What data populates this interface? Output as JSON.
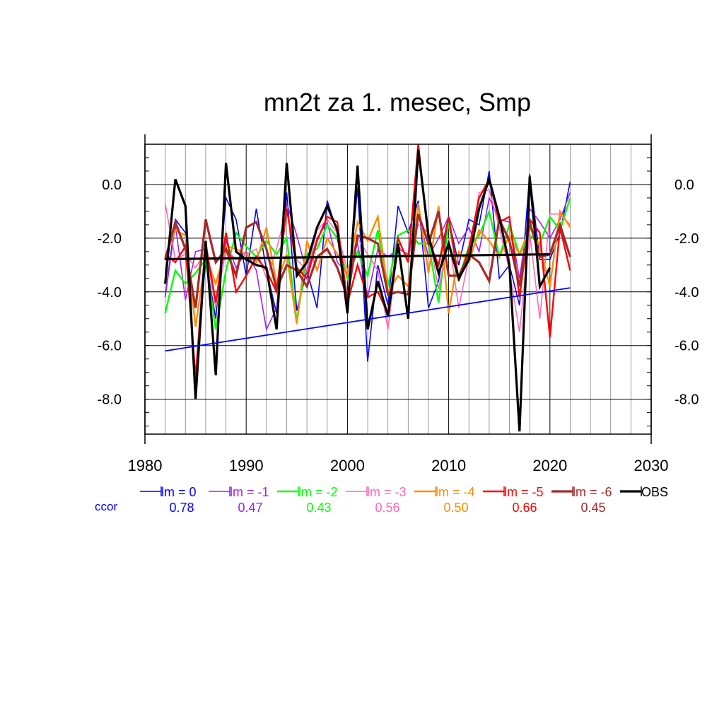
{
  "chart_data": {
    "type": "line",
    "title": "mn2t za 1. mesec, Smp",
    "xlabel": "",
    "ylabel": "",
    "xlim": [
      1980,
      2030
    ],
    "ylim": [
      -9.3,
      1.5
    ],
    "x_ticks": [
      1980,
      1990,
      2000,
      2010,
      2020,
      2030
    ],
    "x_tick_labels": [
      "1980",
      "1990",
      "2000",
      "2010",
      "2020",
      "2030"
    ],
    "y_ticks": [
      0,
      -2,
      -4,
      -6,
      -8
    ],
    "y_tick_labels": [
      "0.0",
      "-2.0",
      "-4.0",
      "-6.0",
      "-8.0"
    ],
    "grid": true,
    "legend_position": "bottom",
    "ccor_label": "ccor",
    "ccor_color": "#0000ff",
    "series": [
      {
        "name": "lm = 0",
        "color": "#0000ff",
        "stroke": "thin",
        "ccor": "0.78",
        "x": [
          1982,
          1983,
          1984,
          1985,
          1986,
          1987,
          1988,
          1989,
          1990,
          1991,
          1992,
          1993,
          1994,
          1995,
          1996,
          1997,
          1998,
          1999,
          2000,
          2001,
          2002,
          2003,
          2004,
          2005,
          2006,
          2007,
          2008,
          2009,
          2010,
          2011,
          2012,
          2013,
          2014,
          2015,
          2016,
          2017,
          2018,
          2019,
          2020,
          2021,
          2022
        ],
        "values": [
          -4.2,
          -1.3,
          -1.8,
          -7.4,
          -2.8,
          -5.0,
          -0.5,
          -1.3,
          -3.4,
          -0.9,
          -3.2,
          -4.8,
          -0.3,
          -4.7,
          -3.2,
          -4.6,
          -0.6,
          -1.8,
          -4.4,
          -0.1,
          -6.6,
          -3.0,
          -4.5,
          -0.8,
          -1.8,
          -0.6,
          -4.6,
          -3.6,
          -1.3,
          -3.0,
          -1.3,
          -1.5,
          0.5,
          -3.5,
          -3.0,
          -4.5,
          0.4,
          -2.8,
          -2.8,
          -1.8,
          0.1
        ]
      },
      {
        "name": "lm = -1",
        "color": "#a020f0",
        "stroke": "thin",
        "ccor": "0.47",
        "x": [
          1982,
          1983,
          1984,
          1985,
          1986,
          1987,
          1988,
          1989,
          1990,
          1991,
          1992,
          1993,
          1994,
          1995,
          1996,
          1997,
          1998,
          1999,
          2000,
          2001,
          2002,
          2003,
          2004,
          2005,
          2006,
          2007,
          2008,
          2009,
          2010,
          2011,
          2012,
          2013,
          2014,
          2015,
          2016,
          2017,
          2018,
          2019,
          2020,
          2021,
          2022
        ],
        "values": [
          -4.2,
          -1.5,
          -4.3,
          -2.5,
          -2.4,
          -4.4,
          -2.1,
          -3.1,
          -2.5,
          -3.2,
          -5.4,
          -4.6,
          -0.7,
          -1.9,
          -3.3,
          -2.0,
          -1.4,
          -2.9,
          -3.3,
          -2.2,
          -4.2,
          -2.4,
          -2.7,
          -2.4,
          -2.6,
          -1.1,
          -2.7,
          -2.0,
          -1.2,
          -2.2,
          -1.6,
          -2.5,
          -0.5,
          -1.3,
          -1.4,
          -3.5,
          -0.9,
          -1.4,
          -2.0,
          -1.3,
          -0.3
        ]
      },
      {
        "name": "lm = -2",
        "color": "#00ff00",
        "stroke": "medium",
        "ccor": "0.43",
        "x": [
          1982,
          1983,
          1984,
          1985,
          1986,
          1987,
          1988,
          1989,
          1990,
          1991,
          1992,
          1993,
          1994,
          1995,
          1996,
          1997,
          1998,
          1999,
          2000,
          2001,
          2002,
          2003,
          2004,
          2005,
          2006,
          2007,
          2008,
          2009,
          2010,
          2011,
          2012,
          2013,
          2014,
          2015,
          2016,
          2017,
          2018,
          2019,
          2020,
          2021,
          2022
        ],
        "values": [
          -4.8,
          -3.2,
          -3.7,
          -3.3,
          -2.8,
          -5.4,
          -3.2,
          -1.8,
          -2.3,
          -2.7,
          -2.1,
          -2.6,
          -2.0,
          -5.1,
          -2.6,
          -2.4,
          -1.5,
          -2.0,
          -3.5,
          -2.5,
          -3.4,
          -1.7,
          -3.8,
          -1.9,
          -1.7,
          -2.2,
          -2.2,
          -4.4,
          -1.4,
          -3.5,
          -2.3,
          -1.9,
          -1.0,
          -2.7,
          -1.5,
          -2.6,
          -1.9,
          -2.2,
          -1.2,
          -1.7,
          -0.5
        ]
      },
      {
        "name": "lm = -3",
        "color": "#ff69b4",
        "stroke": "thin",
        "ccor": "0.56",
        "x": [
          1982,
          1983,
          1984,
          1985,
          1986,
          1987,
          1988,
          1989,
          1990,
          1991,
          1992,
          1993,
          1994,
          1995,
          1996,
          1997,
          1998,
          1999,
          2000,
          2001,
          2002,
          2003,
          2004,
          2005,
          2006,
          2007,
          2008,
          2009,
          2010,
          2011,
          2012,
          2013,
          2014,
          2015,
          2016,
          2017,
          2018,
          2019,
          2020,
          2021,
          2022
        ],
        "values": [
          -0.7,
          -2.8,
          -2.6,
          -3.1,
          -2.5,
          -4.6,
          -2.4,
          -2.8,
          -2.6,
          -2.4,
          -3.5,
          -2.4,
          -0.9,
          -2.8,
          -3.2,
          -1.7,
          -1.3,
          -1.8,
          -3.2,
          -2.0,
          -2.6,
          -3.2,
          -5.4,
          -2.3,
          -2.7,
          -1.5,
          -1.8,
          -3.9,
          -2.0,
          -4.6,
          -2.7,
          -0.3,
          -0.2,
          -1.6,
          -3.2,
          -5.5,
          -1.8,
          -5.0,
          -1.1,
          -1.1,
          -1.5
        ]
      },
      {
        "name": "lm = -4",
        "color": "#ff8c00",
        "stroke": "medium",
        "ccor": "0.50",
        "x": [
          1982,
          1983,
          1984,
          1985,
          1986,
          1987,
          1988,
          1989,
          1990,
          1991,
          1992,
          1993,
          1994,
          1995,
          1996,
          1997,
          1998,
          1999,
          2000,
          2001,
          2002,
          2003,
          2004,
          2005,
          2006,
          2007,
          2008,
          2009,
          2010,
          2011,
          2012,
          2013,
          2014,
          2015,
          2016,
          2017,
          2018,
          2019,
          2020,
          2021,
          2022
        ],
        "values": [
          -2.7,
          -1.7,
          -1.9,
          -5.3,
          -2.7,
          -3.7,
          -2.3,
          -2.4,
          -2.6,
          -2.9,
          -1.6,
          -3.7,
          -2.6,
          -5.2,
          -2.1,
          -3.2,
          -2.0,
          -2.6,
          -3.4,
          -1.4,
          -2.1,
          -1.2,
          -4.0,
          -3.4,
          -3.8,
          -0.7,
          -3.3,
          -0.8,
          -4.8,
          -2.5,
          -2.9,
          -1.7,
          -2.1,
          -2.7,
          -1.9,
          -2.6,
          -1.6,
          -2.3,
          -3.8,
          -1.0,
          -1.6
        ]
      },
      {
        "name": "lm = -5",
        "color": "#ff0000",
        "stroke": "medium",
        "ccor": "0.66",
        "x": [
          1982,
          1983,
          1984,
          1985,
          1986,
          1987,
          1988,
          1989,
          1990,
          1991,
          1992,
          1993,
          1994,
          1995,
          1996,
          1997,
          1998,
          1999,
          2000,
          2001,
          2002,
          2003,
          2004,
          2005,
          2006,
          2007,
          2008,
          2009,
          2010,
          2011,
          2012,
          2013,
          2014,
          2015,
          2016,
          2017,
          2018,
          2019,
          2020,
          2021,
          2022
        ],
        "values": [
          -2.6,
          -2.9,
          -2.3,
          -7.2,
          -2.2,
          -4.4,
          -1.8,
          -4.0,
          -3.4,
          -2.7,
          -3.2,
          -4.0,
          -0.9,
          -3.1,
          -3.5,
          -2.1,
          -1.2,
          -1.4,
          -4.4,
          -3.0,
          -4.2,
          -4.0,
          -4.8,
          -2.0,
          -2.9,
          1.5,
          -2.1,
          -3.0,
          -1.2,
          -3.6,
          -2.4,
          -0.5,
          0.2,
          -1.4,
          -1.2,
          -4.2,
          -1.3,
          -1.8,
          -5.7,
          -1.6,
          -3.2
        ]
      },
      {
        "name": "lm = -6",
        "color": "#a52a2a",
        "stroke": "thick",
        "ccor": "0.45",
        "x": [
          1982,
          1983,
          1984,
          1985,
          1986,
          1987,
          1988,
          1989,
          1990,
          1991,
          1992,
          1993,
          1994,
          1995,
          1996,
          1997,
          1998,
          1999,
          2000,
          2001,
          2002,
          2003,
          2004,
          2005,
          2006,
          2007,
          2008,
          2009,
          2010,
          2011,
          2012,
          2013,
          2014,
          2015,
          2016,
          2017,
          2018,
          2019,
          2020,
          2021,
          2022
        ],
        "values": [
          -2.8,
          -1.4,
          -2.4,
          -4.6,
          -1.3,
          -2.9,
          -2.4,
          -3.4,
          -1.6,
          -1.4,
          -2.4,
          -3.9,
          -3.0,
          -3.2,
          -3.8,
          -2.7,
          -2.4,
          -3.1,
          -4.2,
          -1.9,
          -2.0,
          -2.2,
          -4.1,
          -4.0,
          -4.1,
          -1.1,
          -2.2,
          -1.0,
          -3.4,
          -3.4,
          -2.6,
          -2.9,
          -3.6,
          -1.3,
          -2.1,
          -3.8,
          -1.4,
          -2.7,
          -2.6,
          -1.5,
          -2.7
        ]
      },
      {
        "name": "OBS",
        "color": "#000000",
        "stroke": "thick",
        "ccor": "",
        "x": [
          1982,
          1983,
          1984,
          1985,
          1986,
          1987,
          1988,
          1989,
          1990,
          1991,
          1992,
          1993,
          1994,
          1995,
          1996,
          1997,
          1998,
          1999,
          2000,
          2001,
          2002,
          2003,
          2004,
          2005,
          2006,
          2007,
          2008,
          2009,
          2010,
          2011,
          2012,
          2013,
          2014,
          2015,
          2016,
          2017,
          2018,
          2019,
          2020
        ],
        "values": [
          -3.7,
          0.2,
          -0.8,
          -8.0,
          -2.1,
          -7.1,
          0.8,
          -2.5,
          -2.8,
          -3.0,
          -3.1,
          -5.4,
          0.8,
          -3.4,
          -2.9,
          -1.6,
          -0.8,
          -1.7,
          -4.8,
          0.7,
          -5.4,
          -3.6,
          -4.9,
          -2.2,
          -5.0,
          1.3,
          -1.9,
          -3.3,
          -2.2,
          -3.5,
          -2.8,
          -0.9,
          0.2,
          -1.2,
          -3.0,
          -9.2,
          0.3,
          -3.8,
          -3.1
        ]
      }
    ],
    "trend_lines": [
      {
        "name": "lm = 0",
        "color": "#0000ff",
        "x": [
          1982,
          2022
        ],
        "values": [
          -6.2,
          -3.85
        ]
      },
      {
        "name": "OBS",
        "color": "#000000",
        "x": [
          1982,
          2020
        ],
        "values": [
          -2.78,
          -2.6
        ]
      }
    ]
  }
}
